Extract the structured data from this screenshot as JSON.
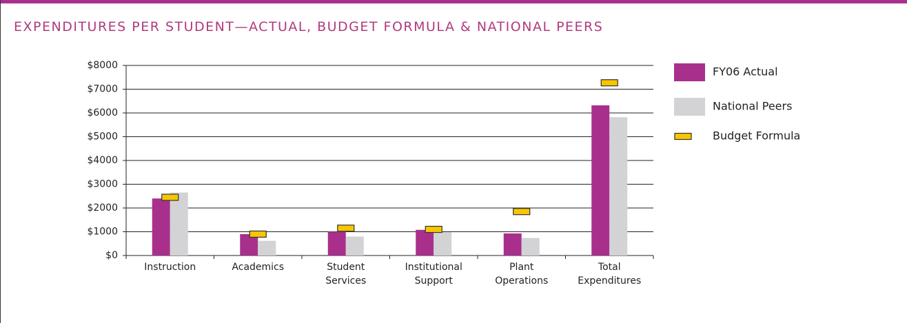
{
  "chart_data": {
    "type": "bar",
    "title": "EXPENDITURES PER STUDENT—ACTUAL, BUDGET FORMULA & NATIONAL PEERS",
    "categories": [
      "Instruction",
      "Academics",
      "Student Services",
      "Institutional Support",
      "Plant Operations",
      "Total Expenditures"
    ],
    "series": [
      {
        "name": "FY06 Actual",
        "color": "#a8308c",
        "values": [
          2400,
          900,
          1000,
          1080,
          930,
          6320
        ]
      },
      {
        "name": "National Peers",
        "color": "#d3d3d5",
        "values": [
          2650,
          620,
          800,
          980,
          740,
          5820
        ]
      },
      {
        "name": "Budget Formula",
        "color": "#f7c600",
        "type": "marker",
        "values": [
          2450,
          900,
          1150,
          1100,
          1850,
          7270
        ]
      }
    ],
    "ylim": [
      0,
      8000
    ],
    "yticks": [
      {
        "value": 0,
        "label": "$0"
      },
      {
        "value": 1000,
        "label": "$1000"
      },
      {
        "value": 2000,
        "label": "$2000"
      },
      {
        "value": 3000,
        "label": "$3000"
      },
      {
        "value": 4000,
        "label": "$4000"
      },
      {
        "value": 5000,
        "label": "$5000"
      },
      {
        "value": 6000,
        "label": "$6000"
      },
      {
        "value": 7000,
        "label": "$7000"
      },
      {
        "value": 8000,
        "label": "$8000"
      }
    ],
    "grid": true,
    "legend": "right"
  }
}
